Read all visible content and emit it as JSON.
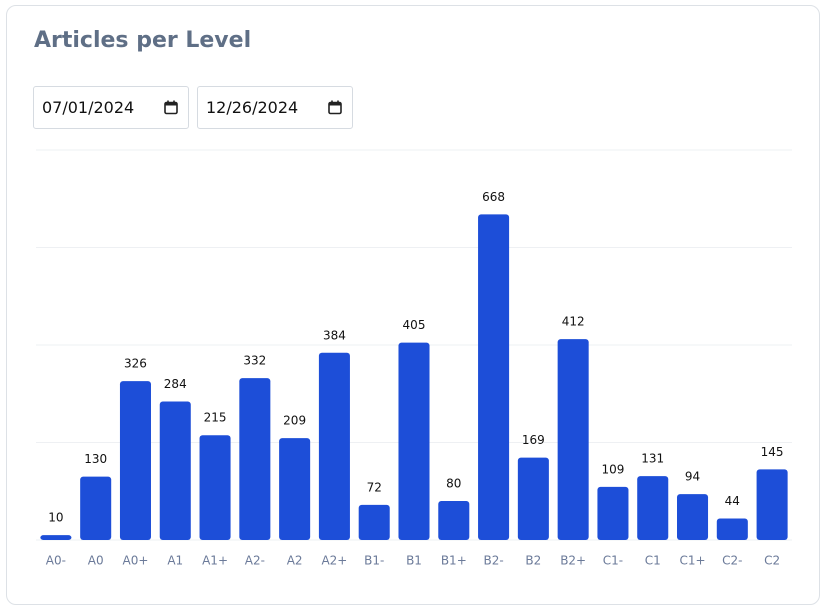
{
  "header": {
    "title": "Articles per Level"
  },
  "filters": {
    "date_from": "07/01/2024",
    "date_to": "12/26/2024"
  },
  "chart_data": {
    "type": "bar",
    "categories": [
      "A0-",
      "A0",
      "A0+",
      "A1",
      "A1+",
      "A2-",
      "A2",
      "A2+",
      "B1-",
      "B1",
      "B1+",
      "B2-",
      "B2",
      "B2+",
      "C1-",
      "C1",
      "C1+",
      "C2-",
      "C2"
    ],
    "values": [
      10,
      130,
      326,
      284,
      215,
      332,
      209,
      384,
      72,
      405,
      80,
      668,
      169,
      412,
      109,
      131,
      94,
      44,
      145
    ],
    "color": "#1d4ed8",
    "ylim": [
      0,
      800
    ],
    "yticks": [
      0,
      200,
      400,
      600,
      800
    ],
    "grid": true
  }
}
